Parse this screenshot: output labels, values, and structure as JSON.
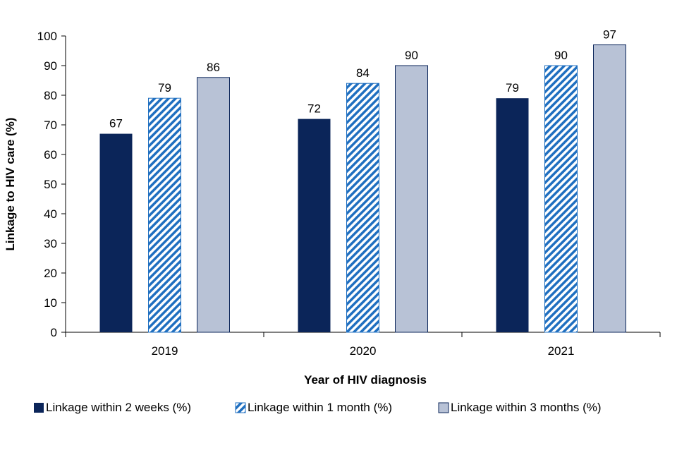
{
  "colors": {
    "series_2_weeks": "#0b2559",
    "series_1_month_stripe": "#1f6fc0",
    "series_1_month_bg": "#ffffff",
    "series_3_months": "#b8c2d6",
    "axis": "#000000"
  },
  "chart_data": {
    "type": "bar",
    "title": "",
    "xlabel": "Year of HIV diagnosis",
    "ylabel": "Linkage to HIV care (%)",
    "categories": [
      "2019",
      "2020",
      "2021"
    ],
    "ylim": [
      0,
      100
    ],
    "ytick_step": 10,
    "yticks": [
      "0",
      "10",
      "20",
      "30",
      "40",
      "50",
      "60",
      "70",
      "80",
      "90",
      "100"
    ],
    "grid": false,
    "legend_position": "bottom",
    "series": [
      {
        "name": "Linkage within 2 weeks (%)",
        "values": [
          67,
          72,
          79
        ],
        "fill": "solid",
        "color": "#0b2559"
      },
      {
        "name": "Linkage within 1 month (%)",
        "values": [
          79,
          84,
          90
        ],
        "fill": "hatched",
        "color": "#1f6fc0"
      },
      {
        "name": "Linkage within 3 months (%)",
        "values": [
          86,
          90,
          97
        ],
        "fill": "solid",
        "color": "#b8c2d6"
      }
    ]
  }
}
